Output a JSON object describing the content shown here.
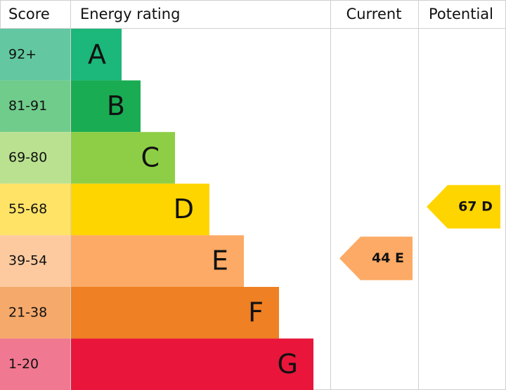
{
  "header": {
    "score": "Score",
    "rating": "Energy rating",
    "current": "Current",
    "potential": "Potential"
  },
  "rows": [
    {
      "score": "92+",
      "rating": "A",
      "color": "#1bb77b",
      "score_color": "#63c8a1"
    },
    {
      "score": "81-91",
      "rating": "B",
      "color": "#1aac53",
      "score_color": "#70cc8b"
    },
    {
      "score": "69-80",
      "rating": "C",
      "color": "#8ece46",
      "score_color": "#b9e190"
    },
    {
      "score": "55-68",
      "rating": "D",
      "color": "#ffd500",
      "score_color": "#ffe366"
    },
    {
      "score": "39-54",
      "rating": "E",
      "color": "#fcaa65",
      "score_color": "#fdcaa0"
    },
    {
      "score": "21-38",
      "rating": "F",
      "color": "#ef8023",
      "score_color": "#f5a96a"
    },
    {
      "score": "1-20",
      "rating": "G",
      "color": "#e9153b",
      "score_color": "#f07890"
    }
  ],
  "current": {
    "value": 44,
    "label": "44 E"
  },
  "potential": {
    "value": 67,
    "label": "67 D"
  }
}
